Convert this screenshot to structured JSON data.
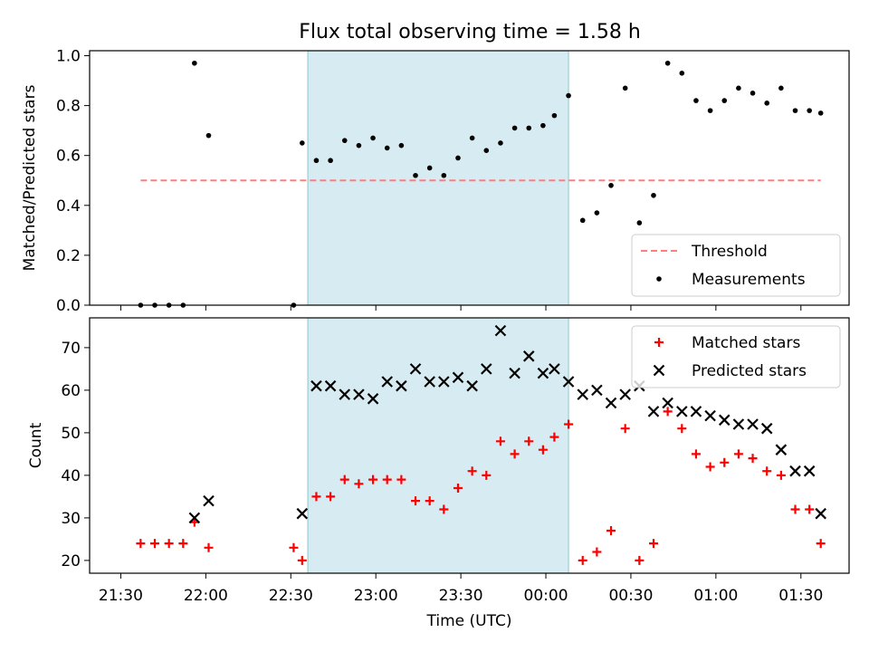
{
  "title": "Flux total observing time = 1.58 h",
  "chart_data": [
    {
      "type": "scatter",
      "panel": "top",
      "ylabel": "Matched/Predicted stars",
      "xlabel": "",
      "ylim": [
        0.0,
        1.02
      ],
      "xlim": [
        "21:19",
        "01:47"
      ],
      "yticks": [
        0.0,
        0.2,
        0.4,
        0.6,
        0.8,
        1.0
      ],
      "ytick_labels": [
        "0.0",
        "0.2",
        "0.4",
        "0.6",
        "0.8",
        "1.0"
      ],
      "shaded_interval": [
        "22:36",
        "00:08"
      ],
      "legend": {
        "placement": "lower right",
        "entries": [
          "Threshold",
          "Measurements"
        ]
      },
      "series": [
        {
          "name": "Threshold",
          "style": "dashed-line",
          "color": "#ff7f7f",
          "points": [
            [
              "21:37",
              0.5
            ],
            [
              "01:37",
              0.5
            ]
          ]
        },
        {
          "name": "Measurements",
          "style": "dot",
          "color": "#000000",
          "points": [
            [
              "21:37",
              0.0
            ],
            [
              "21:42",
              0.0
            ],
            [
              "21:47",
              0.0
            ],
            [
              "21:52",
              0.0
            ],
            [
              "21:56",
              0.97
            ],
            [
              "22:01",
              0.68
            ],
            [
              "22:31",
              0.0
            ],
            [
              "22:34",
              0.65
            ],
            [
              "22:39",
              0.58
            ],
            [
              "22:44",
              0.58
            ],
            [
              "22:49",
              0.66
            ],
            [
              "22:54",
              0.64
            ],
            [
              "22:59",
              0.67
            ],
            [
              "23:04",
              0.63
            ],
            [
              "23:09",
              0.64
            ],
            [
              "23:14",
              0.52
            ],
            [
              "23:19",
              0.55
            ],
            [
              "23:24",
              0.52
            ],
            [
              "23:29",
              0.59
            ],
            [
              "23:34",
              0.67
            ],
            [
              "23:39",
              0.62
            ],
            [
              "23:44",
              0.65
            ],
            [
              "23:49",
              0.71
            ],
            [
              "23:54",
              0.71
            ],
            [
              "23:59",
              0.72
            ],
            [
              "00:03",
              0.76
            ],
            [
              "00:08",
              0.84
            ],
            [
              "00:13",
              0.34
            ],
            [
              "00:18",
              0.37
            ],
            [
              "00:23",
              0.48
            ],
            [
              "00:28",
              0.87
            ],
            [
              "00:33",
              0.33
            ],
            [
              "00:38",
              0.44
            ],
            [
              "00:43",
              0.97
            ],
            [
              "00:48",
              0.93
            ],
            [
              "00:53",
              0.82
            ],
            [
              "00:58",
              0.78
            ],
            [
              "01:03",
              0.82
            ],
            [
              "01:08",
              0.87
            ],
            [
              "01:13",
              0.85
            ],
            [
              "01:18",
              0.81
            ],
            [
              "01:23",
              0.87
            ],
            [
              "01:28",
              0.78
            ],
            [
              "01:33",
              0.78
            ],
            [
              "01:37",
              0.77
            ]
          ]
        }
      ]
    },
    {
      "type": "scatter",
      "panel": "bottom",
      "ylabel": "Count",
      "xlabel": "Time (UTC)",
      "ylim": [
        17,
        77
      ],
      "xlim": [
        "21:19",
        "01:47"
      ],
      "yticks": [
        20,
        30,
        40,
        50,
        60,
        70
      ],
      "ytick_labels": [
        "20",
        "30",
        "40",
        "50",
        "60",
        "70"
      ],
      "xticks": [
        "21:30",
        "22:00",
        "22:30",
        "23:00",
        "23:30",
        "00:00",
        "00:30",
        "01:00",
        "01:30"
      ],
      "shaded_interval": [
        "22:36",
        "00:08"
      ],
      "legend": {
        "placement": "upper right",
        "entries": [
          "Matched stars",
          "Predicted stars"
        ]
      },
      "series": [
        {
          "name": "Matched stars",
          "marker": "plus",
          "color": "#ff0000",
          "points": [
            [
              "21:37",
              24
            ],
            [
              "21:42",
              24
            ],
            [
              "21:47",
              24
            ],
            [
              "21:52",
              24
            ],
            [
              "21:56",
              29
            ],
            [
              "22:01",
              23
            ],
            [
              "22:31",
              23
            ],
            [
              "22:34",
              20
            ],
            [
              "22:39",
              35
            ],
            [
              "22:44",
              35
            ],
            [
              "22:49",
              39
            ],
            [
              "22:54",
              38
            ],
            [
              "22:59",
              39
            ],
            [
              "23:04",
              39
            ],
            [
              "23:09",
              39
            ],
            [
              "23:14",
              34
            ],
            [
              "23:19",
              34
            ],
            [
              "23:24",
              32
            ],
            [
              "23:29",
              37
            ],
            [
              "23:34",
              41
            ],
            [
              "23:39",
              40
            ],
            [
              "23:44",
              48
            ],
            [
              "23:49",
              45
            ],
            [
              "23:54",
              48
            ],
            [
              "23:59",
              46
            ],
            [
              "00:03",
              49
            ],
            [
              "00:08",
              52
            ],
            [
              "00:13",
              20
            ],
            [
              "00:18",
              22
            ],
            [
              "00:23",
              27
            ],
            [
              "00:28",
              51
            ],
            [
              "00:33",
              20
            ],
            [
              "00:38",
              24
            ],
            [
              "00:43",
              55
            ],
            [
              "00:48",
              51
            ],
            [
              "00:53",
              45
            ],
            [
              "00:58",
              42
            ],
            [
              "01:03",
              43
            ],
            [
              "01:08",
              45
            ],
            [
              "01:13",
              44
            ],
            [
              "01:18",
              41
            ],
            [
              "01:23",
              40
            ],
            [
              "01:28",
              32
            ],
            [
              "01:33",
              32
            ],
            [
              "01:37",
              24
            ]
          ]
        },
        {
          "name": "Predicted stars",
          "marker": "x",
          "color": "#000000",
          "points": [
            [
              "21:56",
              30
            ],
            [
              "22:01",
              34
            ],
            [
              "22:34",
              31
            ],
            [
              "22:39",
              61
            ],
            [
              "22:44",
              61
            ],
            [
              "22:49",
              59
            ],
            [
              "22:54",
              59
            ],
            [
              "22:59",
              58
            ],
            [
              "23:04",
              62
            ],
            [
              "23:09",
              61
            ],
            [
              "23:14",
              65
            ],
            [
              "23:19",
              62
            ],
            [
              "23:24",
              62
            ],
            [
              "23:29",
              63
            ],
            [
              "23:34",
              61
            ],
            [
              "23:39",
              65
            ],
            [
              "23:44",
              74
            ],
            [
              "23:49",
              64
            ],
            [
              "23:54",
              68
            ],
            [
              "23:59",
              64
            ],
            [
              "00:03",
              65
            ],
            [
              "00:08",
              62
            ],
            [
              "00:13",
              59
            ],
            [
              "00:18",
              60
            ],
            [
              "00:23",
              57
            ],
            [
              "00:28",
              59
            ],
            [
              "00:33",
              61
            ],
            [
              "00:38",
              55
            ],
            [
              "00:43",
              57
            ],
            [
              "00:48",
              55
            ],
            [
              "00:53",
              55
            ],
            [
              "00:58",
              54
            ],
            [
              "01:03",
              53
            ],
            [
              "01:08",
              52
            ],
            [
              "01:13",
              52
            ],
            [
              "01:18",
              51
            ],
            [
              "01:23",
              46
            ],
            [
              "01:28",
              41
            ],
            [
              "01:33",
              41
            ],
            [
              "01:37",
              31
            ]
          ]
        }
      ]
    }
  ]
}
